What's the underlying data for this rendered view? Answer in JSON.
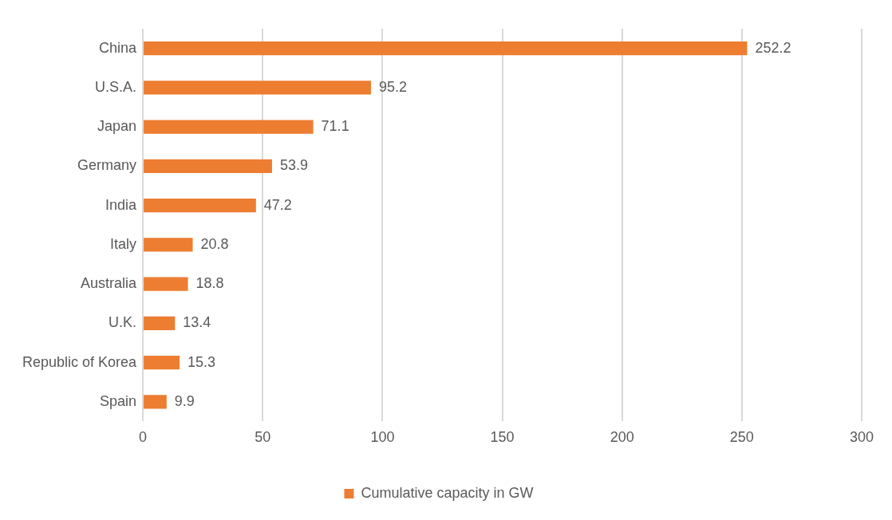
{
  "chart_data": {
    "type": "bar",
    "orientation": "horizontal",
    "categories": [
      "China",
      "U.S.A.",
      "Japan",
      "Germany",
      "India",
      "Italy",
      "Australia",
      "U.K.",
      "Republic of Korea",
      "Spain"
    ],
    "series": [
      {
        "name": "Cumulative capacity in GW",
        "color": "#ed7d31",
        "values": [
          252.2,
          95.2,
          71.1,
          53.9,
          47.2,
          20.8,
          18.8,
          13.4,
          15.3,
          9.9
        ]
      }
    ],
    "xlim": [
      0,
      300
    ],
    "xticks": [
      0,
      50,
      100,
      150,
      200,
      250,
      300
    ],
    "grid": "x",
    "legend": "bottom",
    "data_labels": true
  }
}
